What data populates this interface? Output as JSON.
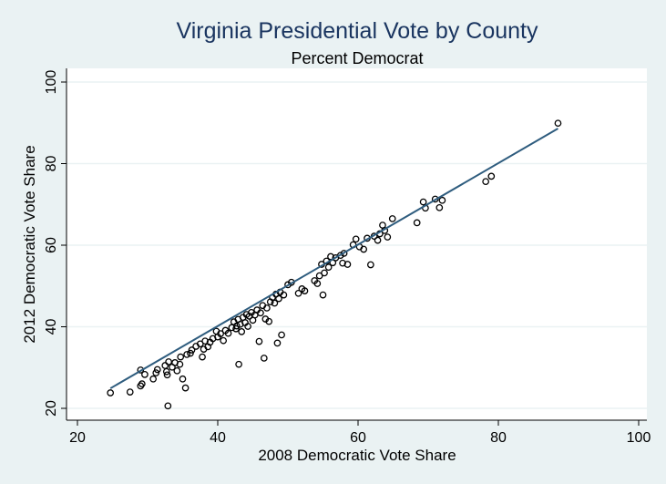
{
  "chart_data": {
    "type": "scatter",
    "title": "Virginia Presidential Vote by County",
    "subtitle": "Percent Democrat",
    "xlabel": "2008 Democratic Vote Share",
    "ylabel": "2012 Democratic Vote Share",
    "xlim": [
      20,
      100
    ],
    "ylim": [
      20,
      100
    ],
    "xticks": [
      20,
      40,
      60,
      80,
      100
    ],
    "yticks": [
      20,
      40,
      60,
      80,
      100
    ],
    "grid": "horizontal",
    "legend": "none",
    "colors": {
      "background": "#eaf2f3",
      "plot_background": "#ffffff",
      "title": "#1a3560",
      "fit_line": "#2e5c7e",
      "marker": "#000000",
      "grid": "#eaf2f3"
    },
    "fit_line": {
      "x": [
        24.7,
        88.5
      ],
      "y": [
        24.9,
        88.6
      ]
    },
    "points": [
      {
        "x": 24.7,
        "y": 23.8
      },
      {
        "x": 27.5,
        "y": 24.0
      },
      {
        "x": 29.0,
        "y": 29.4
      },
      {
        "x": 29.0,
        "y": 25.5
      },
      {
        "x": 29.2,
        "y": 26.0
      },
      {
        "x": 29.6,
        "y": 28.3
      },
      {
        "x": 30.8,
        "y": 27.2
      },
      {
        "x": 31.2,
        "y": 28.7
      },
      {
        "x": 31.4,
        "y": 29.5
      },
      {
        "x": 32.5,
        "y": 30.5
      },
      {
        "x": 32.7,
        "y": 29.0
      },
      {
        "x": 32.8,
        "y": 28.2
      },
      {
        "x": 32.9,
        "y": 20.6
      },
      {
        "x": 33.0,
        "y": 31.4
      },
      {
        "x": 33.5,
        "y": 30.1
      },
      {
        "x": 33.9,
        "y": 31.2
      },
      {
        "x": 34.2,
        "y": 29.2
      },
      {
        "x": 34.6,
        "y": 30.8
      },
      {
        "x": 34.7,
        "y": 32.6
      },
      {
        "x": 35.0,
        "y": 27.2
      },
      {
        "x": 35.4,
        "y": 25.0
      },
      {
        "x": 35.6,
        "y": 33.2
      },
      {
        "x": 36.1,
        "y": 33.5
      },
      {
        "x": 36.3,
        "y": 34.3
      },
      {
        "x": 36.9,
        "y": 35.2
      },
      {
        "x": 37.5,
        "y": 35.8
      },
      {
        "x": 37.8,
        "y": 32.6
      },
      {
        "x": 38.0,
        "y": 34.5
      },
      {
        "x": 38.2,
        "y": 36.5
      },
      {
        "x": 38.6,
        "y": 35.1
      },
      {
        "x": 38.9,
        "y": 36.2
      },
      {
        "x": 39.3,
        "y": 37.1
      },
      {
        "x": 39.8,
        "y": 38.9
      },
      {
        "x": 40.0,
        "y": 37.5
      },
      {
        "x": 40.4,
        "y": 38.3
      },
      {
        "x": 40.8,
        "y": 36.6
      },
      {
        "x": 41.1,
        "y": 39.1
      },
      {
        "x": 41.5,
        "y": 38.4
      },
      {
        "x": 42.0,
        "y": 39.8
      },
      {
        "x": 42.3,
        "y": 41.2
      },
      {
        "x": 42.6,
        "y": 39.5
      },
      {
        "x": 42.7,
        "y": 40.2
      },
      {
        "x": 42.9,
        "y": 41.8
      },
      {
        "x": 43.0,
        "y": 30.8
      },
      {
        "x": 43.2,
        "y": 40.6
      },
      {
        "x": 43.4,
        "y": 38.8
      },
      {
        "x": 43.6,
        "y": 42.3
      },
      {
        "x": 43.9,
        "y": 41.0
      },
      {
        "x": 44.1,
        "y": 43.0
      },
      {
        "x": 44.3,
        "y": 40.1
      },
      {
        "x": 44.5,
        "y": 42.6
      },
      {
        "x": 44.8,
        "y": 43.5
      },
      {
        "x": 45.0,
        "y": 41.6
      },
      {
        "x": 45.3,
        "y": 42.9
      },
      {
        "x": 45.6,
        "y": 44.1
      },
      {
        "x": 45.9,
        "y": 36.4
      },
      {
        "x": 46.1,
        "y": 43.4
      },
      {
        "x": 46.4,
        "y": 45.2
      },
      {
        "x": 46.6,
        "y": 32.3
      },
      {
        "x": 46.8,
        "y": 41.9
      },
      {
        "x": 47.0,
        "y": 44.6
      },
      {
        "x": 47.3,
        "y": 41.3
      },
      {
        "x": 47.5,
        "y": 46.1
      },
      {
        "x": 47.8,
        "y": 47.2
      },
      {
        "x": 48.1,
        "y": 45.8
      },
      {
        "x": 48.3,
        "y": 48.0
      },
      {
        "x": 48.5,
        "y": 36.0
      },
      {
        "x": 48.7,
        "y": 46.9
      },
      {
        "x": 48.9,
        "y": 48.5
      },
      {
        "x": 49.1,
        "y": 38.0
      },
      {
        "x": 49.4,
        "y": 47.8
      },
      {
        "x": 50.0,
        "y": 50.3
      },
      {
        "x": 50.5,
        "y": 50.9
      },
      {
        "x": 51.5,
        "y": 48.2
      },
      {
        "x": 52.0,
        "y": 49.3
      },
      {
        "x": 52.4,
        "y": 48.8
      },
      {
        "x": 53.8,
        "y": 51.3
      },
      {
        "x": 54.2,
        "y": 50.6
      },
      {
        "x": 54.5,
        "y": 52.5
      },
      {
        "x": 54.8,
        "y": 55.3
      },
      {
        "x": 55.0,
        "y": 47.8
      },
      {
        "x": 55.2,
        "y": 53.2
      },
      {
        "x": 55.5,
        "y": 56.1
      },
      {
        "x": 55.8,
        "y": 54.6
      },
      {
        "x": 56.1,
        "y": 57.2
      },
      {
        "x": 56.4,
        "y": 55.7
      },
      {
        "x": 56.8,
        "y": 56.9
      },
      {
        "x": 57.5,
        "y": 57.5
      },
      {
        "x": 57.8,
        "y": 55.6
      },
      {
        "x": 58.0,
        "y": 58.0
      },
      {
        "x": 58.5,
        "y": 55.3
      },
      {
        "x": 59.3,
        "y": 60.1
      },
      {
        "x": 59.7,
        "y": 61.5
      },
      {
        "x": 60.2,
        "y": 59.6
      },
      {
        "x": 60.8,
        "y": 59.0
      },
      {
        "x": 61.3,
        "y": 61.7
      },
      {
        "x": 61.8,
        "y": 55.2
      },
      {
        "x": 62.3,
        "y": 62.2
      },
      {
        "x": 62.8,
        "y": 61.2
      },
      {
        "x": 63.1,
        "y": 62.8
      },
      {
        "x": 63.5,
        "y": 64.9
      },
      {
        "x": 63.8,
        "y": 63.6
      },
      {
        "x": 64.2,
        "y": 62.0
      },
      {
        "x": 64.9,
        "y": 66.5
      },
      {
        "x": 68.4,
        "y": 65.5
      },
      {
        "x": 69.3,
        "y": 70.6
      },
      {
        "x": 69.6,
        "y": 69.1
      },
      {
        "x": 71.0,
        "y": 71.3
      },
      {
        "x": 71.6,
        "y": 69.2
      },
      {
        "x": 72.0,
        "y": 71.0
      },
      {
        "x": 78.2,
        "y": 75.6
      },
      {
        "x": 79.0,
        "y": 76.9
      },
      {
        "x": 88.5,
        "y": 89.9
      }
    ]
  }
}
